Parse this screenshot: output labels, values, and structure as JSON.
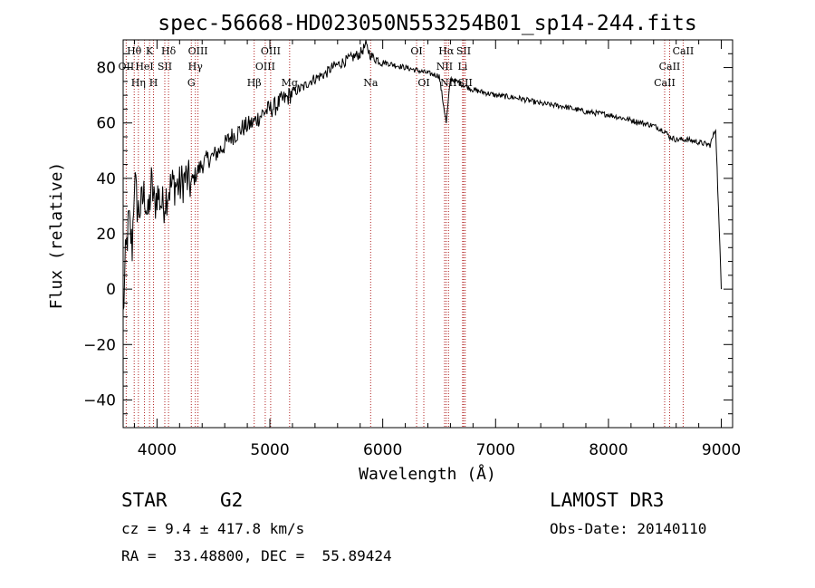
{
  "chart_data": {
    "type": "line",
    "title": "spec-56668-HD023050N553254B01_sp14-244.fits",
    "xlabel": "Wavelength (Å)",
    "ylabel": "Flux (relative)",
    "xlim": [
      3700,
      9100
    ],
    "ylim": [
      -50,
      90
    ],
    "xticks": [
      4000,
      5000,
      6000,
      7000,
      8000,
      9000
    ],
    "yticks": [
      -40,
      -20,
      0,
      20,
      40,
      60,
      80
    ],
    "xtick_labels": [
      "4000",
      "5000",
      "6000",
      "7000",
      "8000",
      "9000"
    ],
    "ytick_labels": [
      "−40",
      "−20",
      "0",
      "20",
      "40",
      "60",
      "80"
    ],
    "series": [
      {
        "name": "spectrum",
        "x": [
          3700,
          3720,
          3750,
          3780,
          3800,
          3830,
          3860,
          3890,
          3920,
          3950,
          3980,
          4000,
          4050,
          4100,
          4150,
          4200,
          4250,
          4300,
          4350,
          4400,
          4450,
          4500,
          4550,
          4600,
          4650,
          4700,
          4750,
          4800,
          4850,
          4900,
          4950,
          5000,
          5050,
          5100,
          5150,
          5200,
          5250,
          5300,
          5350,
          5400,
          5450,
          5500,
          5550,
          5600,
          5650,
          5700,
          5750,
          5800,
          5850,
          5900,
          5950,
          6000,
          6100,
          6200,
          6300,
          6400,
          6500,
          6563,
          6600,
          6700,
          6800,
          6900,
          7000,
          7200,
          7400,
          7600,
          7800,
          8000,
          8200,
          8400,
          8500,
          8542,
          8600,
          8700,
          8800,
          8900,
          8950,
          9000
        ],
        "y": [
          -10,
          10,
          25,
          15,
          40,
          28,
          30,
          35,
          25,
          38,
          30,
          35,
          30,
          36,
          38,
          37,
          40,
          38,
          42,
          45,
          47,
          48,
          50,
          52,
          55,
          56,
          58,
          59,
          60,
          62,
          64,
          65,
          66,
          68,
          69,
          71,
          72,
          73,
          75,
          76,
          77,
          78,
          80,
          81,
          82,
          83,
          84,
          85,
          88,
          84,
          83,
          82,
          81,
          80,
          79,
          78,
          77,
          60,
          76,
          74,
          72,
          71,
          70,
          69,
          67,
          66,
          64,
          63,
          61,
          59,
          57,
          55,
          54,
          54,
          53,
          52,
          58,
          0
        ]
      }
    ],
    "line_markers": [
      {
        "label": "Hθ",
        "x": 3798,
        "row": 1
      },
      {
        "label": "K",
        "x": 3934,
        "row": 1
      },
      {
        "label": "Hδ",
        "x": 4102,
        "row": 1
      },
      {
        "label": "OIII",
        "x": 4363,
        "row": 1
      },
      {
        "label": "OIII",
        "x": 5007,
        "row": 1
      },
      {
        "label": "OI",
        "x": 6300,
        "row": 1
      },
      {
        "label": "Hα",
        "x": 6563,
        "row": 1
      },
      {
        "label": "SII",
        "x": 6717,
        "row": 1
      },
      {
        "label": "CaII",
        "x": 8662,
        "row": 1
      },
      {
        "label": "OII",
        "x": 3727,
        "row": 2
      },
      {
        "label": "HeI",
        "x": 3889,
        "row": 2
      },
      {
        "label": "SII",
        "x": 4069,
        "row": 2
      },
      {
        "label": "Hγ",
        "x": 4340,
        "row": 2
      },
      {
        "label": "OIII",
        "x": 4959,
        "row": 2
      },
      {
        "label": "NII",
        "x": 6548,
        "row": 2
      },
      {
        "label": "Li",
        "x": 6708,
        "row": 2
      },
      {
        "label": "CaII",
        "x": 8542,
        "row": 2
      },
      {
        "label": "Hη",
        "x": 3835,
        "row": 3
      },
      {
        "label": "H",
        "x": 3969,
        "row": 3
      },
      {
        "label": "G",
        "x": 4304,
        "row": 3
      },
      {
        "label": "Hβ",
        "x": 4861,
        "row": 3
      },
      {
        "label": "Mg",
        "x": 5175,
        "row": 3
      },
      {
        "label": "Na",
        "x": 5893,
        "row": 3
      },
      {
        "label": "OI",
        "x": 6364,
        "row": 3
      },
      {
        "label": "NII",
        "x": 6583,
        "row": 3
      },
      {
        "label": "SII",
        "x": 6731,
        "row": 3
      },
      {
        "label": "CaII",
        "x": 8498,
        "row": 3
      }
    ]
  },
  "info": {
    "object_type": "STAR",
    "subclass": "G2",
    "survey": "LAMOST DR3",
    "cz": "cz = 9.4 ± 417.8 km/s",
    "obs_date": "Obs-Date: 20140110",
    "coords": "RA =  33.48800, DEC =  55.89424"
  }
}
